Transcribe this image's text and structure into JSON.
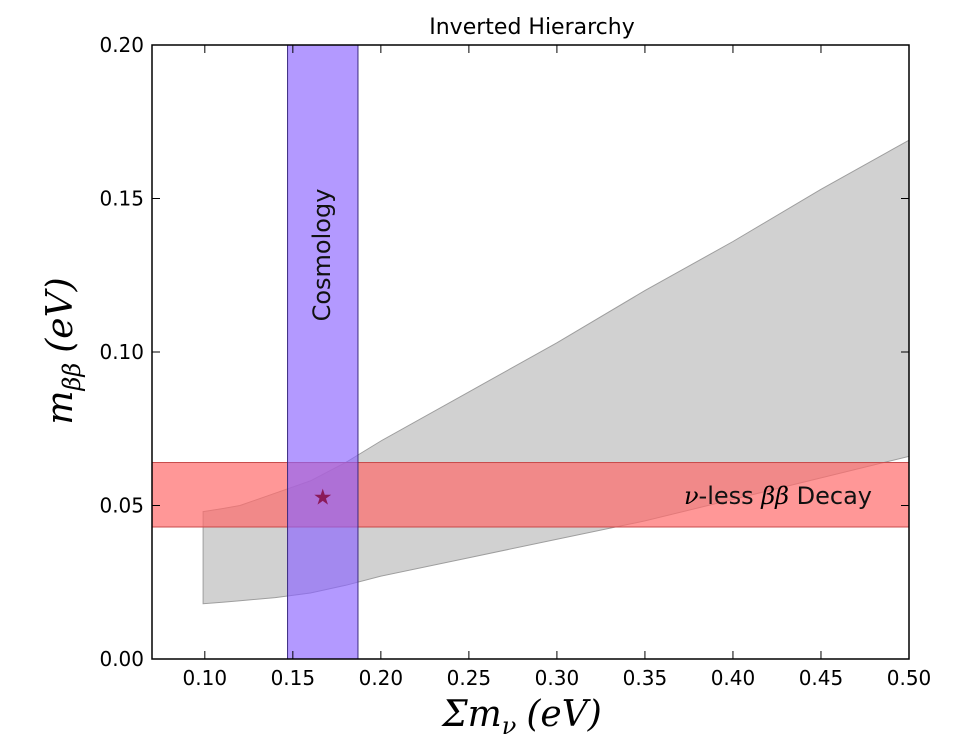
{
  "chart_data": {
    "type": "area",
    "title": "Inverted Hierarchy",
    "xlabel": {
      "sym": "Σm",
      "sub": "ν",
      "unit": "(eV)"
    },
    "ylabel": {
      "sym": "m",
      "sub": "ββ",
      "unit": "(eV)"
    },
    "xlim": [
      0.07,
      0.5
    ],
    "ylim": [
      0.0,
      0.2
    ],
    "x_ticks": [
      0.1,
      0.15,
      0.2,
      0.25,
      0.3,
      0.35,
      0.4,
      0.45,
      0.5
    ],
    "x_tick_labels": [
      "0.10",
      "0.15",
      "0.20",
      "0.25",
      "0.30",
      "0.35",
      "0.40",
      "0.45",
      "0.50"
    ],
    "y_ticks": [
      0.0,
      0.05,
      0.1,
      0.15,
      0.2
    ],
    "y_tick_labels": [
      "0.00",
      "0.05",
      "0.10",
      "0.15",
      "0.20"
    ],
    "grid": false,
    "allowed_region": {
      "color": "#bdbdbd",
      "upper": {
        "x": [
          0.099,
          0.11,
          0.12,
          0.14,
          0.16,
          0.18,
          0.2,
          0.25,
          0.3,
          0.35,
          0.4,
          0.45,
          0.5
        ],
        "y": [
          0.048,
          0.049,
          0.05,
          0.054,
          0.058,
          0.064,
          0.071,
          0.087,
          0.103,
          0.12,
          0.136,
          0.153,
          0.169
        ]
      },
      "lower": {
        "x": [
          0.099,
          0.11,
          0.12,
          0.14,
          0.16,
          0.18,
          0.2,
          0.25,
          0.3,
          0.35,
          0.4,
          0.45,
          0.5
        ],
        "y": [
          0.018,
          0.0185,
          0.019,
          0.02,
          0.0215,
          0.024,
          0.027,
          0.033,
          0.039,
          0.045,
          0.052,
          0.059,
          0.066
        ]
      }
    },
    "cosmology_band": {
      "label": "Cosmology",
      "x_range": [
        0.147,
        0.187
      ],
      "color": "#8a63ff"
    },
    "decay_band": {
      "label_symbol": "ν",
      "label_mid": "-less ",
      "label_bb": "ββ",
      "label_end": " Decay",
      "y_range": [
        0.043,
        0.064
      ],
      "color": "#ff6b6b"
    },
    "marker": {
      "x": 0.167,
      "y": 0.053,
      "symbol": "★",
      "color": "#8b1a5a"
    }
  }
}
